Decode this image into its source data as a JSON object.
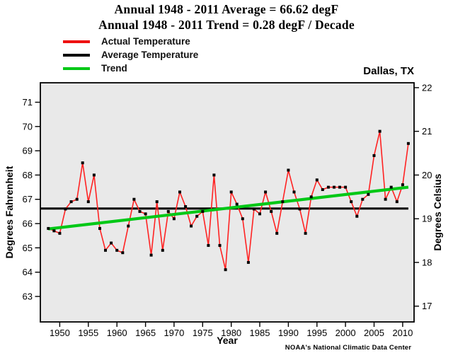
{
  "title": {
    "line1": "Annual 1948 - 2011 Average = 66.62 degF",
    "line2": "Annual 1948 - 2011 Trend = 0.28 degF / Decade"
  },
  "legend": [
    {
      "label": "Actual Temperature",
      "color": "#ee1111"
    },
    {
      "label": "Average Temperature",
      "color": "#000000"
    },
    {
      "label": "Trend",
      "color": "#00c816"
    }
  ],
  "station_label": "Dallas, TX",
  "footer": "NOAA's National Climatic Data Center",
  "axes": {
    "left_title": "Degrees Fahrenheit",
    "right_title": "Degrees Celsius",
    "x_title": "Year"
  },
  "chart_data": {
    "type": "line",
    "title": "Annual 1948 - 2011 Average = 66.62 degF",
    "subtitle": "Annual 1948 - 2011 Trend = 0.28 degF / Decade",
    "xlabel": "Year",
    "ylabel_left": "Degrees Fahrenheit",
    "ylabel_right": "Degrees Celsius",
    "plot_bg": "#e9e9e9",
    "xlim_year": [
      1946.6,
      2012.0
    ],
    "ylim_f": [
      61.95,
      71.8
    ],
    "x_ticks": [
      1950,
      1955,
      1960,
      1965,
      1970,
      1975,
      1980,
      1985,
      1990,
      1995,
      2000,
      2005,
      2010
    ],
    "y_left_ticks": [
      71,
      70,
      69,
      68,
      67,
      66,
      65,
      64,
      63
    ],
    "y_right_ticks": [
      22,
      21,
      20,
      19,
      18,
      17
    ],
    "years": [
      1948,
      1949,
      1950,
      1951,
      1952,
      1953,
      1954,
      1955,
      1956,
      1957,
      1958,
      1959,
      1960,
      1961,
      1962,
      1963,
      1964,
      1965,
      1966,
      1967,
      1968,
      1969,
      1970,
      1971,
      1972,
      1973,
      1974,
      1975,
      1976,
      1977,
      1978,
      1979,
      1980,
      1981,
      1982,
      1983,
      1984,
      1985,
      1986,
      1987,
      1988,
      1989,
      1990,
      1991,
      1992,
      1993,
      1994,
      1995,
      1996,
      1997,
      1998,
      1999,
      2000,
      2001,
      2002,
      2003,
      2004,
      2005,
      2006,
      2007,
      2008,
      2009,
      2010,
      2011
    ],
    "series": [
      {
        "name": "Actual Temperature",
        "type": "line+markers",
        "color": "#ff2222",
        "marker_color": "#000000",
        "values": [
          65.8,
          65.7,
          65.6,
          66.6,
          66.9,
          67.0,
          68.5,
          66.9,
          68.0,
          65.8,
          64.9,
          65.2,
          64.9,
          64.8,
          65.9,
          67.0,
          66.5,
          66.4,
          64.7,
          66.9,
          64.9,
          66.5,
          66.2,
          67.3,
          66.7,
          65.9,
          66.3,
          66.5,
          65.1,
          68.0,
          65.1,
          64.1,
          67.3,
          66.8,
          66.2,
          64.4,
          66.6,
          66.4,
          67.3,
          66.5,
          65.6,
          66.9,
          68.2,
          67.3,
          66.6,
          65.6,
          67.1,
          67.8,
          67.4,
          67.5,
          67.5,
          67.5,
          67.5,
          66.9,
          66.3,
          67.0,
          67.2,
          68.8,
          69.8,
          67.0,
          67.5,
          66.9,
          67.6,
          69.3
        ]
      },
      {
        "name": "Average Temperature",
        "type": "constant",
        "color": "#000000",
        "value": 66.62
      },
      {
        "name": "Trend",
        "type": "linear",
        "color": "#00c816",
        "start_year": 1948,
        "start_value": 65.78,
        "end_year": 2011,
        "end_value": 67.5,
        "slope_degF_per_decade": 0.28
      }
    ],
    "legend_position": "top-left",
    "grid": false
  }
}
